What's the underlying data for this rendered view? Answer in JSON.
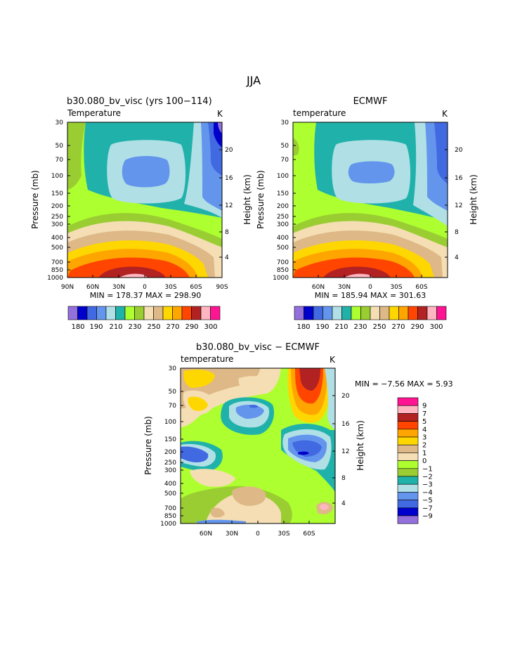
{
  "page_title": "JJA",
  "colors": {
    "temp_scale": [
      "#9370db",
      "#0000cd",
      "#4169e1",
      "#6495ed",
      "#b0e0e6",
      "#20b2aa",
      "#adff2f",
      "#9acd32",
      "#f5deb3",
      "#deb887",
      "#ffd700",
      "#ffa500",
      "#ff4500",
      "#b22222",
      "#ffb6c1",
      "#ff1493"
    ],
    "diff_scale": [
      "#ff1493",
      "#ffb6c1",
      "#b22222",
      "#ff4500",
      "#ffa500",
      "#ffd700",
      "#deb887",
      "#f5deb3",
      "#adff2f",
      "#9acd32",
      "#20b2aa",
      "#b0e0e6",
      "#6495ed",
      "#4169e1",
      "#0000cd",
      "#9370db"
    ]
  },
  "chart_data": [
    {
      "type": "heatmap",
      "title": "b30.080_bv_visc (yrs 100−114)",
      "variable_label": "Temperature",
      "units": "K",
      "ylabel": "Pressure (mb)",
      "y2label": "Height (km)",
      "x_ticks": [
        "90N",
        "60N",
        "30N",
        "0",
        "30S",
        "60S",
        "90S"
      ],
      "y_ticks": [
        "30",
        "50",
        "70",
        "100",
        "150",
        "200",
        "250",
        "300",
        "400",
        "500",
        "700",
        "850",
        "1000"
      ],
      "y2_ticks": [
        "20",
        "16",
        "12",
        "8",
        "4"
      ],
      "stats": "MIN = 178.37   MAX = 298.90",
      "colorbar_labels": [
        "180",
        "190",
        "210",
        "230",
        "250",
        "270",
        "290",
        "300"
      ]
    },
    {
      "type": "heatmap",
      "title": "ECMWF",
      "variable_label": "temperature",
      "units": "K",
      "ylabel": "Pressure (mb)",
      "y2label": "Height (km)",
      "x_ticks": [
        "60N",
        "30N",
        "0",
        "30S",
        "60S"
      ],
      "y_ticks": [
        "30",
        "50",
        "70",
        "100",
        "150",
        "200",
        "250",
        "300",
        "400",
        "500",
        "700",
        "850",
        "1000"
      ],
      "y2_ticks": [
        "20",
        "16",
        "12",
        "8",
        "4"
      ],
      "stats": "MIN = 185.94   MAX = 301.63",
      "colorbar_labels": [
        "180",
        "190",
        "210",
        "230",
        "250",
        "270",
        "290",
        "300"
      ]
    },
    {
      "type": "heatmap",
      "title": "b30.080_bv_visc − ECMWF",
      "variable_label": "temperature",
      "units": "K",
      "ylabel": "Pressure (mb)",
      "y2label": "Height (km)",
      "x_ticks": [
        "60N",
        "30N",
        "0",
        "30S",
        "60S"
      ],
      "y_ticks": [
        "30",
        "50",
        "70",
        "100",
        "150",
        "200",
        "250",
        "300",
        "400",
        "500",
        "700",
        "850",
        "1000"
      ],
      "y2_ticks": [
        "20",
        "16",
        "12",
        "8",
        "4"
      ],
      "stats": "MIN =  −7.56   MAX =   5.93",
      "colorbar_labels": [
        "9",
        "7",
        "5",
        "4",
        "3",
        "2",
        "1",
        "0",
        "−1",
        "−2",
        "−3",
        "−4",
        "−5",
        "−7",
        "−9"
      ]
    }
  ]
}
